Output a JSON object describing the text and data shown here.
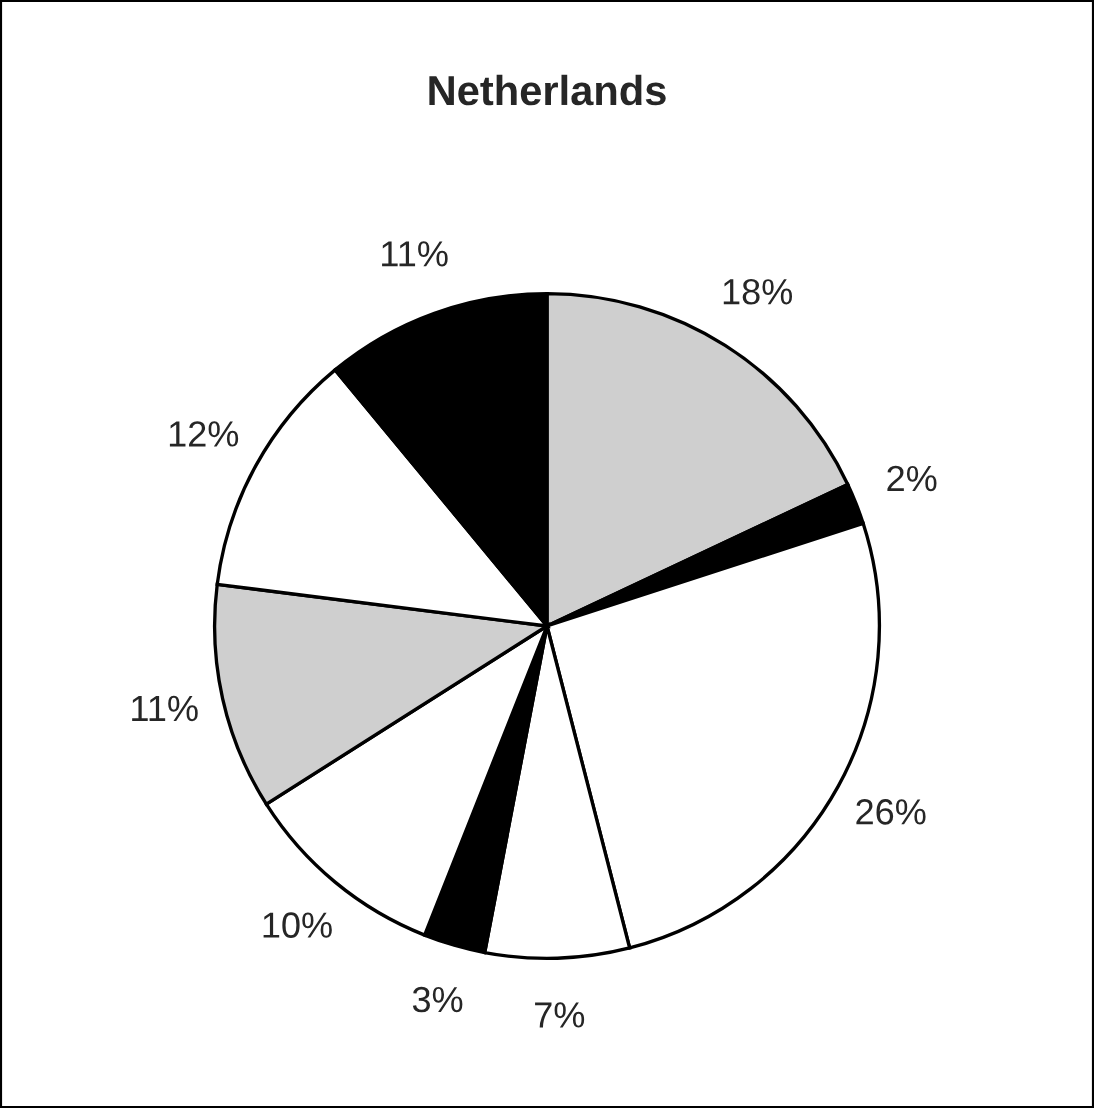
{
  "chart_data": {
    "type": "pie",
    "title": "Netherlands",
    "categories": [
      null,
      null,
      null,
      null,
      null,
      null,
      null,
      null,
      null
    ],
    "values": [
      18,
      2,
      26,
      7,
      3,
      10,
      11,
      12,
      11
    ],
    "value_labels": [
      "18%",
      "2%",
      "26%",
      "7%",
      "3%",
      "10%",
      "11%",
      "12%",
      "11%"
    ],
    "colors": [
      "#cfcfcf",
      "#000000",
      "#ffffff",
      "#ffffff",
      "#000000",
      "#ffffff",
      "#cfcfcf",
      "#ffffff",
      "#000000"
    ]
  }
}
